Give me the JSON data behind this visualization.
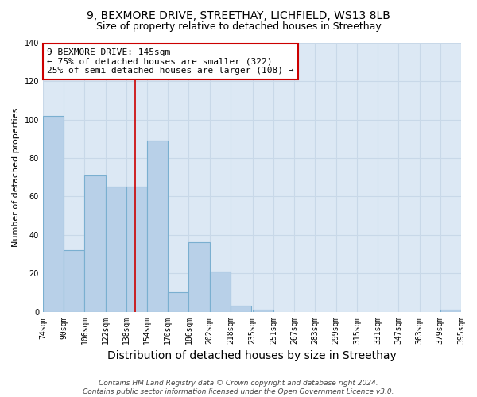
{
  "title": "9, BEXMORE DRIVE, STREETHAY, LICHFIELD, WS13 8LB",
  "subtitle": "Size of property relative to detached houses in Streethay",
  "xlabel": "Distribution of detached houses by size in Streethay",
  "ylabel": "Number of detached properties",
  "footer_line1": "Contains HM Land Registry data © Crown copyright and database right 2024.",
  "footer_line2": "Contains public sector information licensed under the Open Government Licence v3.0.",
  "bins": [
    74,
    90,
    106,
    122,
    138,
    154,
    170,
    186,
    202,
    218,
    235,
    251,
    267,
    283,
    299,
    315,
    331,
    347,
    363,
    379,
    395
  ],
  "bin_labels": [
    "74sqm",
    "90sqm",
    "106sqm",
    "122sqm",
    "138sqm",
    "154sqm",
    "170sqm",
    "186sqm",
    "202sqm",
    "218sqm",
    "235sqm",
    "251sqm",
    "267sqm",
    "283sqm",
    "299sqm",
    "315sqm",
    "331sqm",
    "347sqm",
    "363sqm",
    "379sqm",
    "395sqm"
  ],
  "counts": [
    102,
    32,
    71,
    65,
    65,
    89,
    10,
    36,
    21,
    3,
    1,
    0,
    0,
    0,
    0,
    0,
    0,
    0,
    0,
    1,
    0
  ],
  "bar_color": "#b8d0e8",
  "bar_edge_color": "#7aafd0",
  "vline_x": 145,
  "vline_color": "#cc0000",
  "annotation_line1": "9 BEXMORE DRIVE: 145sqm",
  "annotation_line2": "← 75% of detached houses are smaller (322)",
  "annotation_line3": "25% of semi-detached houses are larger (108) →",
  "annotation_box_color": "#ffffff",
  "annotation_box_edge": "#cc0000",
  "ylim": [
    0,
    140
  ],
  "yticks": [
    0,
    20,
    40,
    60,
    80,
    100,
    120,
    140
  ],
  "grid_color": "#c8d8e8",
  "background_color": "#dce8f4",
  "title_fontsize": 10,
  "subtitle_fontsize": 9,
  "xlabel_fontsize": 10,
  "ylabel_fontsize": 8,
  "tick_fontsize": 7,
  "annot_fontsize": 8,
  "footer_fontsize": 6.5
}
